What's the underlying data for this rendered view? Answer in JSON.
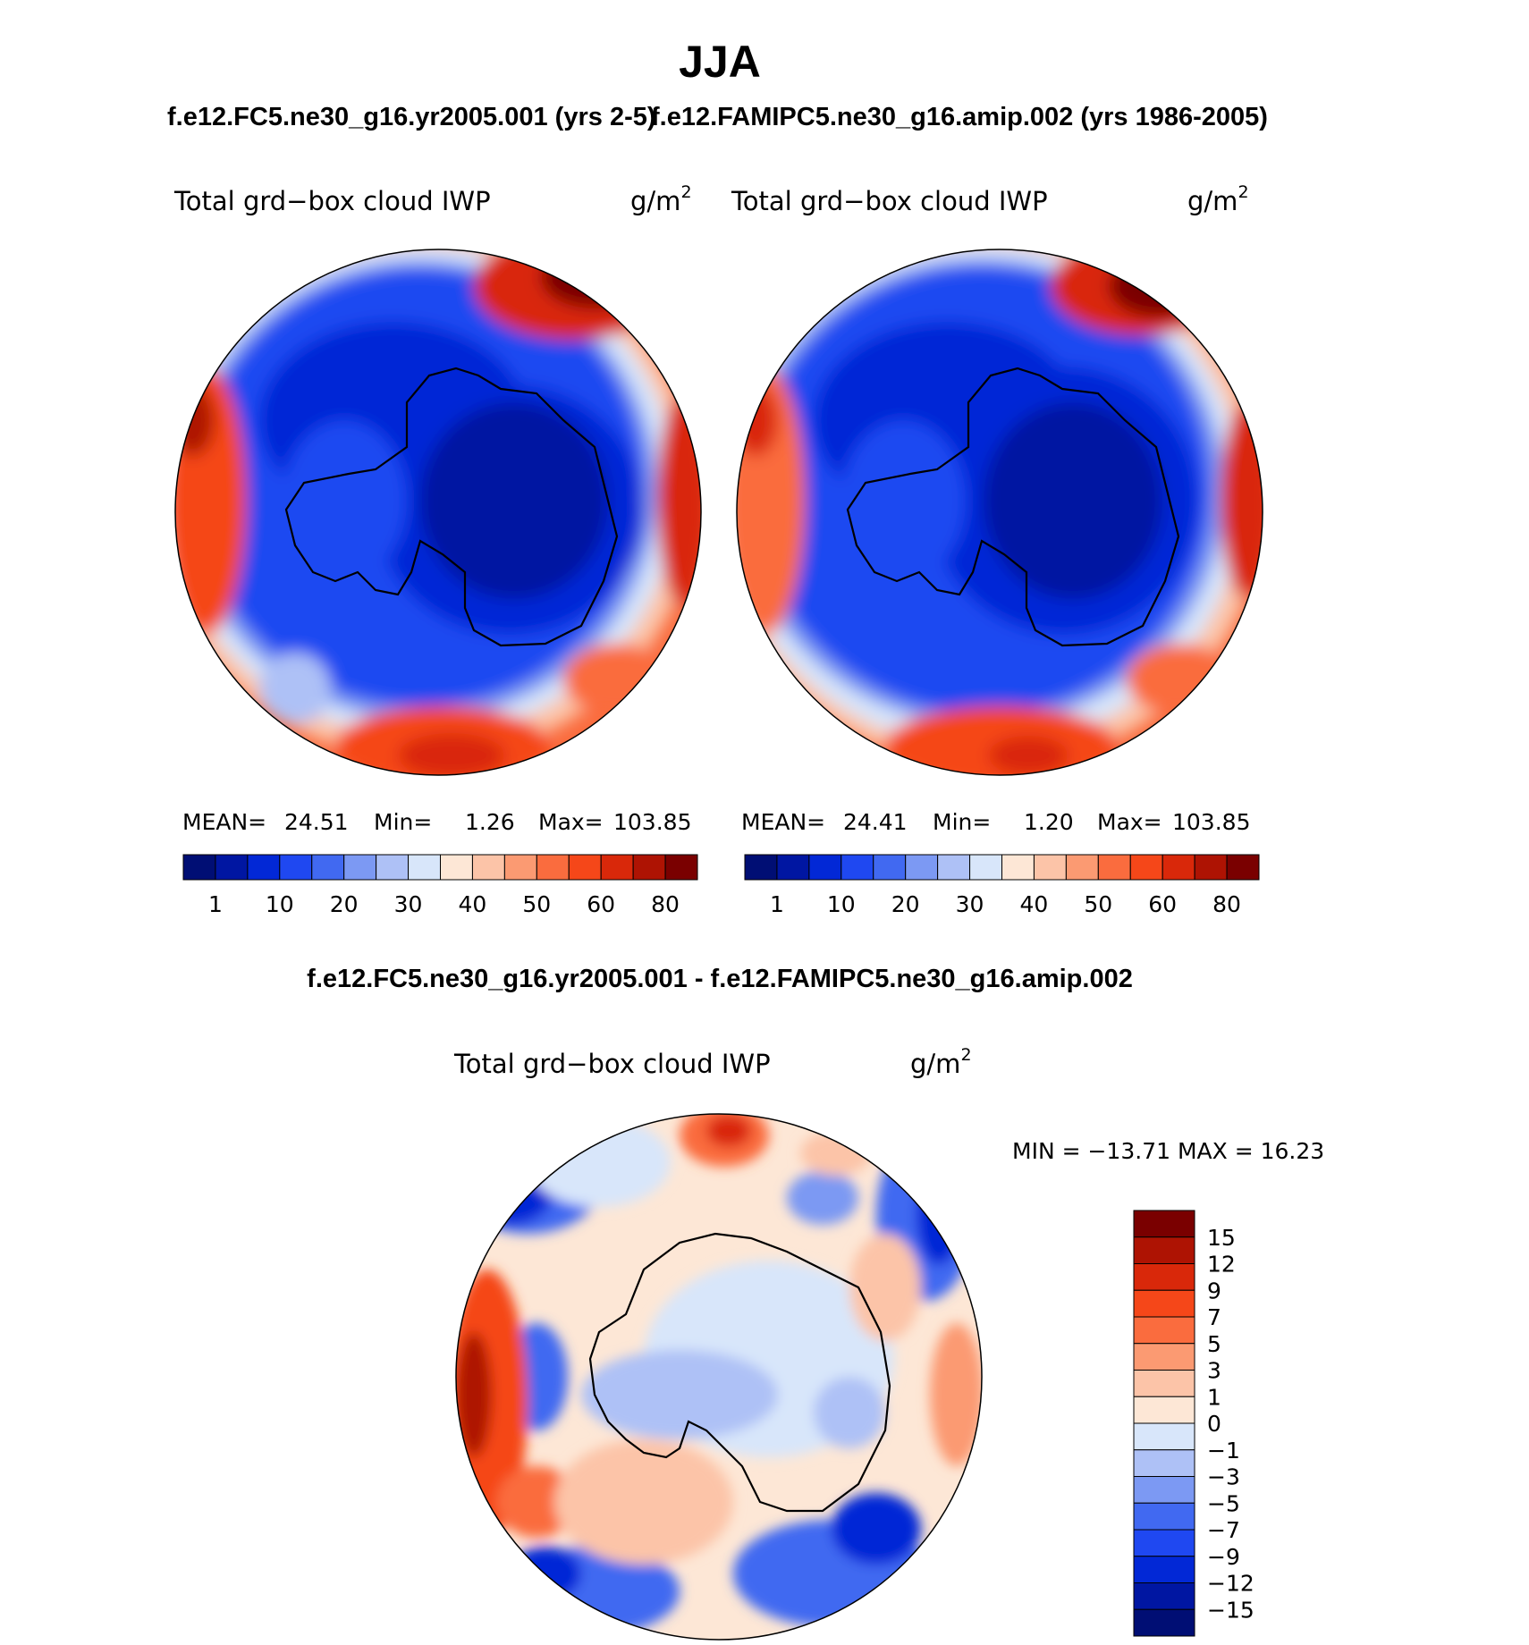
{
  "header": {
    "title": "JJA",
    "case1_title": "f.e12.FC5.ne30_g16.yr2005.001 (yrs 2-5)",
    "case2_title": "f.e12.FAMIPC5.ne30_g16.amip.002 (yrs 1986-2005)"
  },
  "panel1": {
    "variable": "Total grd−box cloud IWP",
    "units": "g/m",
    "units_sup": "2",
    "stats": {
      "mean_label": "MEAN=",
      "mean": "24.51",
      "min_label": "Min=",
      "min": "1.26",
      "max_label": "Max=",
      "max": "103.85"
    }
  },
  "panel2": {
    "variable": "Total grd−box cloud IWP",
    "units": "g/m",
    "units_sup": "2",
    "stats": {
      "mean_label": "MEAN=",
      "mean": "24.41",
      "min_label": "Min=",
      "min": "1.20",
      "max_label": "Max=",
      "max": "103.85"
    }
  },
  "colorbar_main": {
    "colors": [
      "#000e74",
      "#0016a2",
      "#0228d6",
      "#1f48f1",
      "#4169f1",
      "#7c99f3",
      "#aec1f6",
      "#d8e6fa",
      "#fde7d6",
      "#fcc4a8",
      "#fb9a72",
      "#fa6c3e",
      "#f54719",
      "#d9280a",
      "#ae1303",
      "#7a0000"
    ],
    "labels": [
      "1",
      "10",
      "20",
      "30",
      "40",
      "50",
      "60",
      "80"
    ]
  },
  "diff": {
    "title": "f.e12.FC5.ne30_g16.yr2005.001 - f.e12.FAMIPC5.ne30_g16.amip.002",
    "variable": "Total grd−box cloud IWP",
    "units": "g/m",
    "units_sup": "2",
    "minmax": "MIN = −13.71 MAX =  16.23"
  },
  "colorbar_diff": {
    "colors": [
      "#7a0000",
      "#ae1303",
      "#d9280a",
      "#f54719",
      "#fa6c3e",
      "#fb9a72",
      "#fcc4a8",
      "#fde7d6",
      "#d8e6fa",
      "#aec1f6",
      "#7c99f3",
      "#4169f1",
      "#1f48f1",
      "#0228d6",
      "#0016a2",
      "#000e74"
    ],
    "labels": [
      "15",
      "12",
      "9",
      "7",
      "5",
      "3",
      "1",
      "0",
      "−1",
      "−3",
      "−5",
      "−7",
      "−9",
      "−12",
      "−15"
    ]
  }
}
